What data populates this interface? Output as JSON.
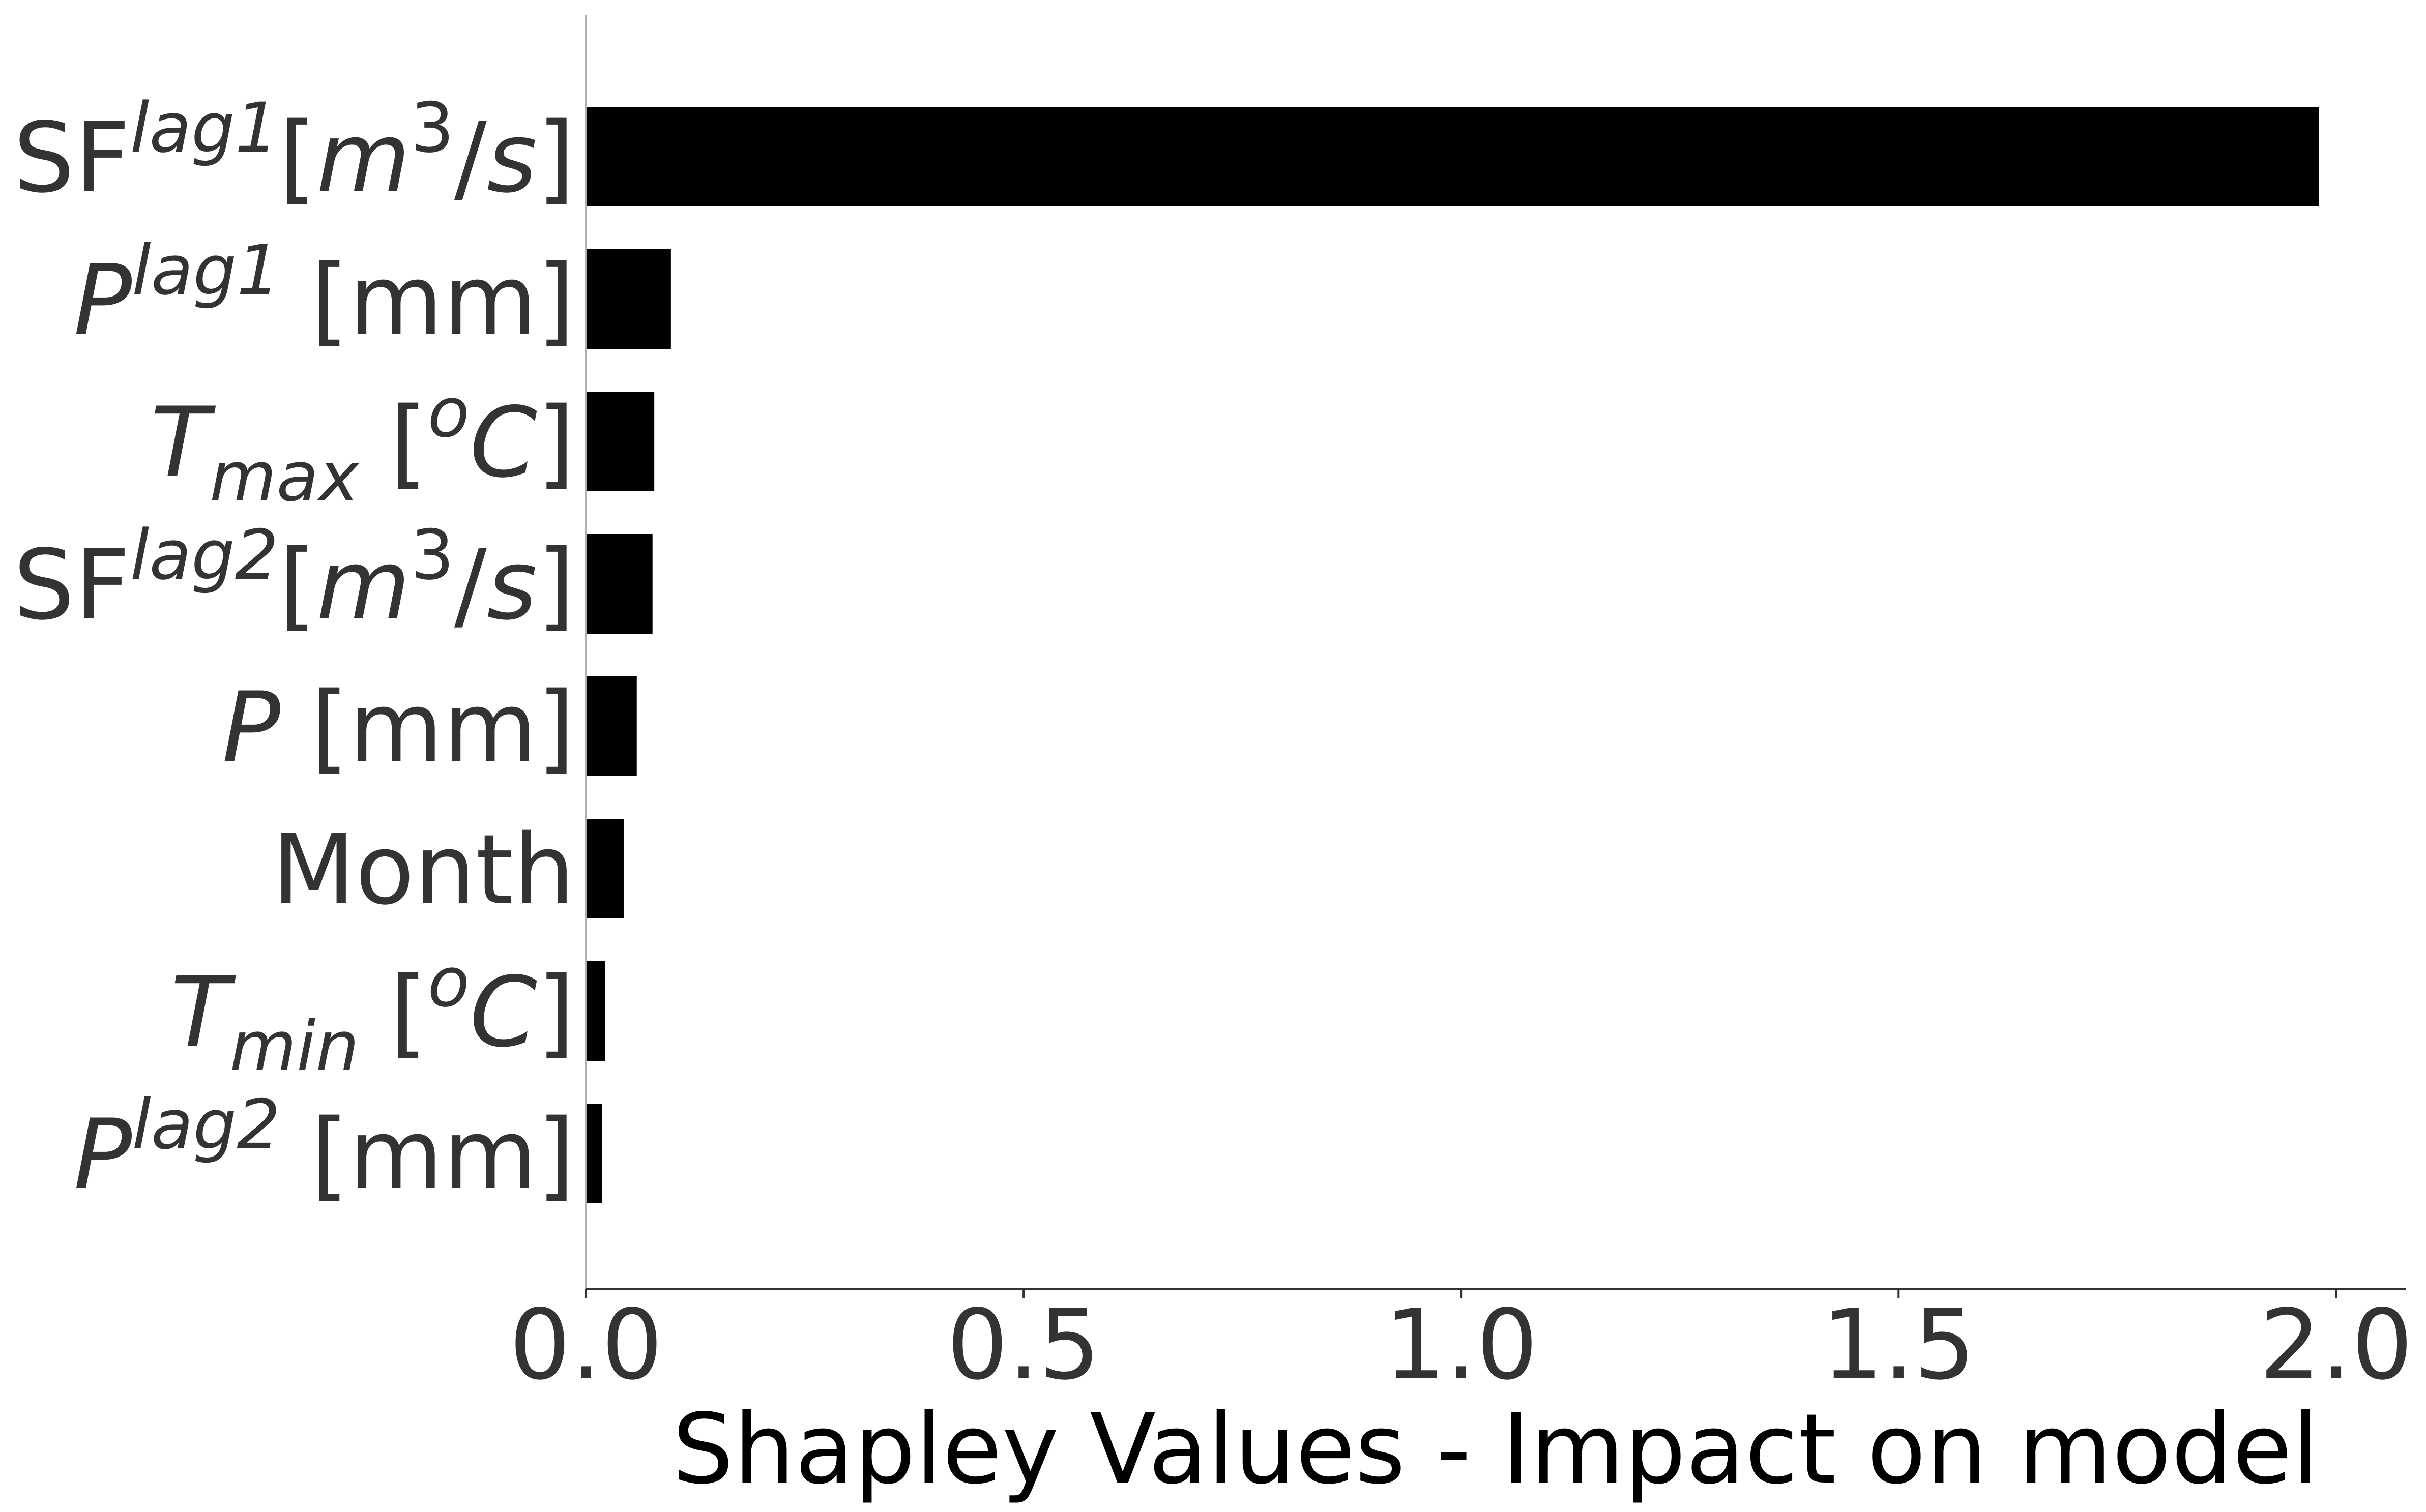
{
  "chart_data": {
    "type": "bar",
    "orientation": "horizontal",
    "categories": [
      {
        "id": "sf-lag1",
        "text": "SF^{lag1}[m^3/s]",
        "parts": [
          {
            "t": "SF"
          },
          {
            "t": "lag1",
            "i": true,
            "sup": true
          },
          {
            "t": "["
          },
          {
            "t": "m",
            "i": true
          },
          {
            "t": "3",
            "sup": true
          },
          {
            "t": "/"
          },
          {
            "t": "s",
            "i": true
          },
          {
            "t": "]"
          }
        ]
      },
      {
        "id": "p-lag1",
        "text": "P^{lag1} [mm]",
        "parts": [
          {
            "t": "P",
            "i": true
          },
          {
            "t": "lag1",
            "i": true,
            "sup": true
          },
          {
            "t": " [mm]"
          }
        ]
      },
      {
        "id": "tmax",
        "text": "T_{max} [^oC]",
        "parts": [
          {
            "t": "T",
            "i": true
          },
          {
            "t": "max",
            "i": true,
            "sub": true
          },
          {
            "t": " ["
          },
          {
            "t": "o",
            "i": true,
            "sup": true
          },
          {
            "t": "C",
            "i": true
          },
          {
            "t": "]"
          }
        ]
      },
      {
        "id": "sf-lag2",
        "text": "SF^{lag2}[m^3/s]",
        "parts": [
          {
            "t": "SF"
          },
          {
            "t": "lag2",
            "i": true,
            "sup": true
          },
          {
            "t": "["
          },
          {
            "t": "m",
            "i": true
          },
          {
            "t": "3",
            "sup": true
          },
          {
            "t": "/"
          },
          {
            "t": "s",
            "i": true
          },
          {
            "t": "]"
          }
        ]
      },
      {
        "id": "p",
        "text": "P [mm]",
        "parts": [
          {
            "t": "P",
            "i": true
          },
          {
            "t": " [mm]"
          }
        ]
      },
      {
        "id": "month",
        "text": "Month",
        "parts": [
          {
            "t": "Month"
          }
        ]
      },
      {
        "id": "tmin",
        "text": "T_{min} [^oC]",
        "parts": [
          {
            "t": "T",
            "i": true
          },
          {
            "t": "min",
            "i": true,
            "sub": true
          },
          {
            "t": " ["
          },
          {
            "t": "o",
            "i": true,
            "sup": true
          },
          {
            "t": "C",
            "i": true
          },
          {
            "t": "]"
          }
        ]
      },
      {
        "id": "p-lag2",
        "text": "P^{lag2} [mm]",
        "parts": [
          {
            "t": "P",
            "i": true
          },
          {
            "t": "lag2",
            "i": true,
            "sup": true
          },
          {
            "t": " [mm]"
          }
        ]
      }
    ],
    "values": [
      1.98,
      0.097,
      0.078,
      0.076,
      0.058,
      0.043,
      0.022,
      0.018
    ],
    "xlabel": "Shapley Values - Impact on model",
    "xlim": [
      0,
      2.08
    ],
    "xticks": [
      0.0,
      0.5,
      1.0,
      1.5,
      2.0
    ],
    "xtick_labels": [
      "0.0",
      "0.5",
      "1.0",
      "1.5",
      "2.0"
    ],
    "bar_color": "#000000",
    "grid": false
  }
}
